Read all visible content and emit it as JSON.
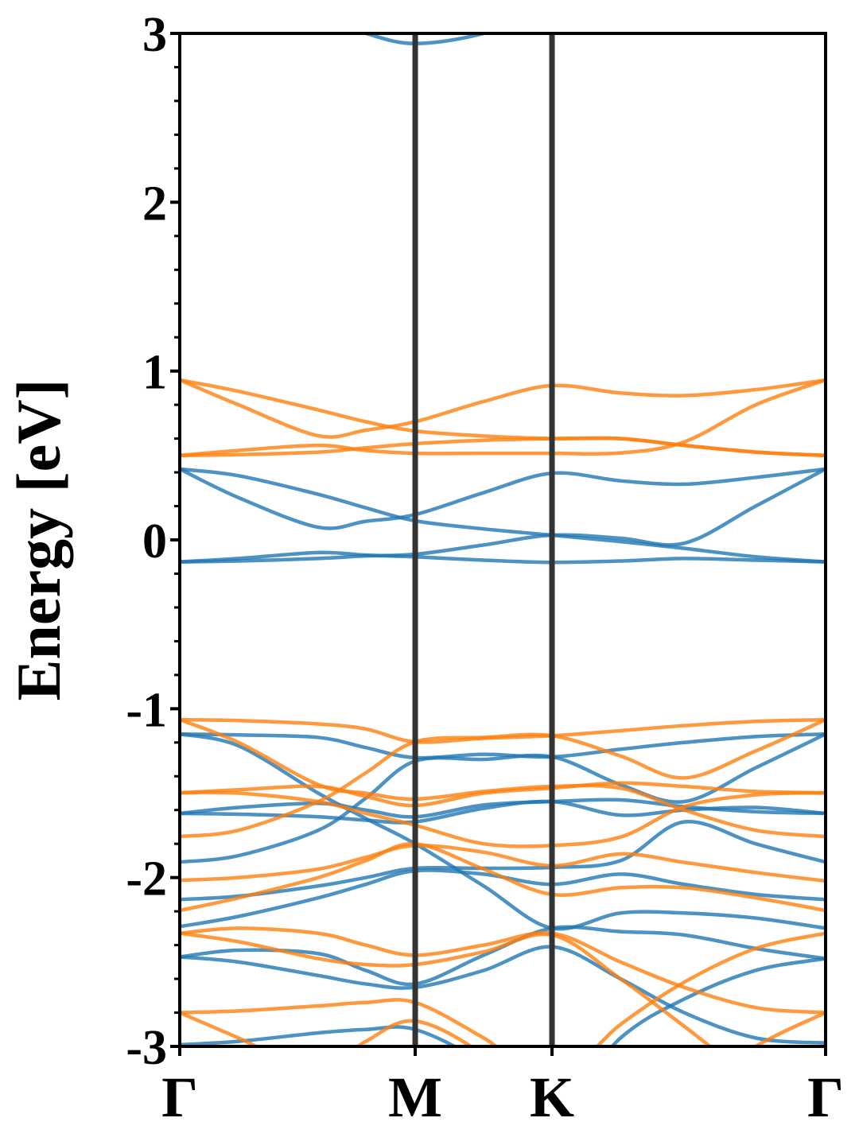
{
  "chart_data": {
    "type": "line",
    "title": "",
    "xlabel": "",
    "ylabel": "Energy [eV]",
    "ylim": [
      -3,
      3
    ],
    "yticks": [
      3,
      2,
      1,
      0,
      -1,
      -2,
      -3
    ],
    "ytick_labels": [
      "3",
      "2",
      "1",
      "0",
      "-1",
      "-2",
      "-3"
    ],
    "minor_tick_step": 0.2,
    "grid": false,
    "legend": "none",
    "high_symmetry_points": [
      {
        "label": "Γ",
        "k": 0
      },
      {
        "label": "M",
        "k": 1.0
      },
      {
        "label": "K",
        "k": 1.581
      },
      {
        "label": "Γ",
        "k": 2.743
      }
    ],
    "k": [
      0,
      0.25,
      0.588,
      0.79,
      1.0,
      1.291,
      1.581,
      1.872,
      2.142,
      2.446,
      2.743
    ],
    "colors": {
      "blue": "#1f77b4",
      "orange": "#ff7f0e",
      "symmetry_line": "#333333",
      "frame": "#000000"
    },
    "series": [
      {
        "color": "blue",
        "bands": [
          [
            3.5,
            3.3,
            3.1,
            3.0,
            2.94,
            3.0,
            3.15,
            3.3,
            3.4,
            3.5,
            3.6
          ],
          [
            0.42,
            0.25,
            0.075,
            0.11,
            0.15,
            0.28,
            0.395,
            0.35,
            0.33,
            0.37,
            0.42
          ],
          [
            0.42,
            0.38,
            0.27,
            0.19,
            0.113,
            0.065,
            0.028,
            -0.01,
            -0.05,
            -0.1,
            -0.13
          ],
          [
            -0.13,
            -0.11,
            -0.075,
            -0.09,
            -0.1,
            -0.12,
            -0.133,
            -0.125,
            -0.11,
            -0.12,
            -0.13
          ],
          [
            -0.13,
            -0.125,
            -0.11,
            -0.095,
            -0.085,
            -0.03,
            0.028,
            0.01,
            -0.02,
            0.2,
            0.42
          ],
          [
            -1.15,
            -1.155,
            -1.17,
            -1.23,
            -1.29,
            -1.27,
            -1.285,
            -1.24,
            -1.2,
            -1.165,
            -1.15
          ],
          [
            -1.15,
            -1.22,
            -1.5,
            -1.65,
            -1.8,
            -2.05,
            -2.3,
            -2.21,
            -2.21,
            -2.24,
            -2.3
          ],
          [
            -1.62,
            -1.585,
            -1.56,
            -1.6,
            -1.64,
            -1.57,
            -1.55,
            -1.54,
            -1.58,
            -1.61,
            -1.62
          ],
          [
            -1.62,
            -1.625,
            -1.64,
            -1.66,
            -1.67,
            -1.59,
            -1.55,
            -1.63,
            -1.6,
            -1.585,
            -1.62
          ],
          [
            -1.908,
            -1.87,
            -1.72,
            -1.53,
            -1.31,
            -1.3,
            -1.285,
            -1.45,
            -1.55,
            -1.35,
            -1.15
          ],
          [
            -2.13,
            -2.11,
            -2.05,
            -2.0,
            -1.945,
            -1.945,
            -1.94,
            -1.9,
            -1.67,
            -1.8,
            -1.908
          ],
          [
            -2.29,
            -2.23,
            -2.12,
            -2.04,
            -1.96,
            -1.98,
            -2.04,
            -1.98,
            -2.04,
            -2.1,
            -2.13
          ],
          [
            -2.47,
            -2.43,
            -2.45,
            -2.55,
            -2.63,
            -2.46,
            -2.3,
            -2.32,
            -2.34,
            -2.42,
            -2.48
          ],
          [
            -2.47,
            -2.5,
            -2.58,
            -2.63,
            -2.65,
            -2.55,
            -2.41,
            -2.6,
            -2.8,
            -2.95,
            -2.98
          ],
          [
            -2.99,
            -2.97,
            -2.92,
            -2.9,
            -2.9,
            -3.1,
            -3.4,
            -2.95,
            -2.72,
            -2.55,
            -2.48
          ]
        ]
      },
      {
        "color": "orange",
        "bands": [
          [
            0.947,
            0.8,
            0.617,
            0.65,
            0.7,
            0.82,
            0.914,
            0.87,
            0.855,
            0.89,
            0.947
          ],
          [
            0.947,
            0.88,
            0.77,
            0.7,
            0.645,
            0.615,
            0.6,
            0.6,
            0.56,
            0.52,
            0.5
          ],
          [
            0.5,
            0.53,
            0.56,
            0.53,
            0.513,
            0.513,
            0.513,
            0.515,
            0.58,
            0.8,
            0.947
          ],
          [
            0.5,
            0.505,
            0.52,
            0.545,
            0.57,
            0.59,
            0.6,
            0.6,
            0.56,
            0.52,
            0.5
          ],
          [
            -1.065,
            -1.07,
            -1.09,
            -1.12,
            -1.196,
            -1.175,
            -1.16,
            -1.13,
            -1.1,
            -1.075,
            -1.065
          ],
          [
            -1.065,
            -1.2,
            -1.45,
            -1.5,
            -1.535,
            -1.49,
            -1.46,
            -1.47,
            -1.6,
            -1.72,
            -1.757
          ],
          [
            -1.757,
            -1.72,
            -1.55,
            -1.38,
            -1.196,
            -1.17,
            -1.16,
            -1.28,
            -1.41,
            -1.25,
            -1.065
          ],
          [
            -1.498,
            -1.48,
            -1.46,
            -1.52,
            -1.573,
            -1.5,
            -1.47,
            -1.44,
            -1.46,
            -1.49,
            -1.498
          ],
          [
            -1.498,
            -1.5,
            -1.55,
            -1.62,
            -1.69,
            -1.8,
            -1.81,
            -1.76,
            -1.58,
            -1.51,
            -1.498
          ],
          [
            -2.016,
            -2.0,
            -1.95,
            -1.88,
            -1.81,
            -1.85,
            -1.93,
            -1.86,
            -1.91,
            -1.97,
            -2.02
          ],
          [
            -2.195,
            -2.12,
            -2.0,
            -1.9,
            -1.8,
            -1.95,
            -2.1,
            -2.06,
            -2.06,
            -2.12,
            -2.195
          ],
          [
            -2.33,
            -2.3,
            -2.33,
            -2.4,
            -2.46,
            -2.4,
            -2.33,
            -2.5,
            -2.65,
            -2.77,
            -2.8
          ],
          [
            -2.33,
            -2.38,
            -2.48,
            -2.515,
            -2.515,
            -2.44,
            -2.34,
            -2.6,
            -2.88,
            -3.2,
            -3.4
          ],
          [
            -2.8,
            -2.79,
            -2.76,
            -2.74,
            -2.74,
            -2.95,
            -3.2,
            -2.87,
            -2.62,
            -2.42,
            -2.33
          ],
          [
            -2.8,
            -2.95,
            -3.15,
            -2.97,
            -2.85,
            -3.05,
            -3.4,
            -3.5,
            -3.3,
            -3.0,
            -2.8
          ]
        ]
      }
    ]
  }
}
